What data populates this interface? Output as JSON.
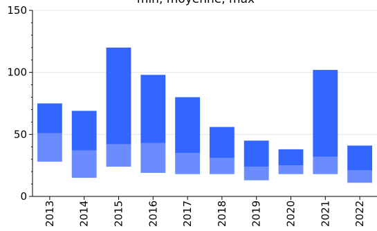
{
  "chart_data": {
    "type": "bar",
    "title": "min, moyenne, max",
    "categories": [
      "2013",
      "2014",
      "2015",
      "2016",
      "2017",
      "2018",
      "2019",
      "2020",
      "2021",
      "2022"
    ],
    "series": [
      {
        "name": "min",
        "values": [
          28,
          15,
          24,
          19,
          18,
          18,
          13,
          18,
          18,
          11
        ]
      },
      {
        "name": "moyenne",
        "values": [
          51,
          37,
          42,
          43,
          35,
          31,
          24,
          25,
          32,
          21
        ]
      },
      {
        "name": "max",
        "values": [
          75,
          69,
          120,
          98,
          80,
          56,
          45,
          38,
          102,
          41
        ]
      }
    ],
    "ylim": [
      0,
      150
    ],
    "yticks": [
      0,
      50,
      100,
      150
    ],
    "grid": true,
    "colors": {
      "lower_band": "#6a8cff",
      "upper_band": "#3366ff",
      "grid": "#e6e6e6",
      "axis": "#000000"
    }
  }
}
